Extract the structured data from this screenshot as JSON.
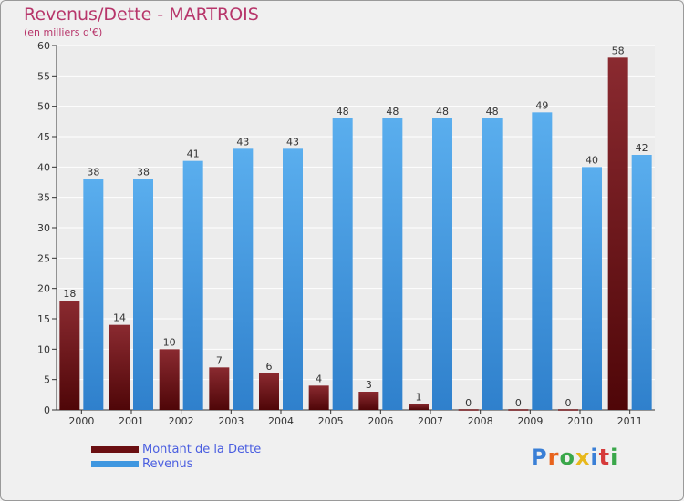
{
  "title": "Revenus/Dette - MARTROIS",
  "subtitle": "(en milliers d'€)",
  "logo": {
    "text": "Proxiti",
    "colors": [
      "#3a7fd6",
      "#e8631c",
      "#3aa74a",
      "#e8b81c",
      "#3a7fd6",
      "#d63a3a",
      "#3aa74a"
    ]
  },
  "legend": {
    "items": [
      {
        "label": "Montant de la Dette",
        "color": "#6b0f12"
      },
      {
        "label": "Revenus",
        "color": "#3f97e0"
      }
    ],
    "position": "bottom-left"
  },
  "chart_data": {
    "type": "bar",
    "categories": [
      "2000",
      "2001",
      "2002",
      "2003",
      "2004",
      "2005",
      "2006",
      "2007",
      "2008",
      "2009",
      "2010",
      "2011"
    ],
    "series": [
      {
        "name": "Montant de la Dette",
        "values": [
          18,
          14,
          10,
          7,
          6,
          4,
          3,
          1,
          0,
          0,
          0,
          58
        ],
        "color": "#6b0f12"
      },
      {
        "name": "Revenus",
        "values": [
          38,
          38,
          41,
          43,
          43,
          48,
          48,
          48,
          48,
          49,
          40,
          42
        ],
        "color": "#3f97e0"
      }
    ],
    "ylim": [
      0,
      60
    ],
    "yticks": [
      0,
      5,
      10,
      15,
      20,
      25,
      30,
      35,
      40,
      45,
      50,
      55,
      60
    ],
    "grid": true,
    "data_labels": true
  }
}
